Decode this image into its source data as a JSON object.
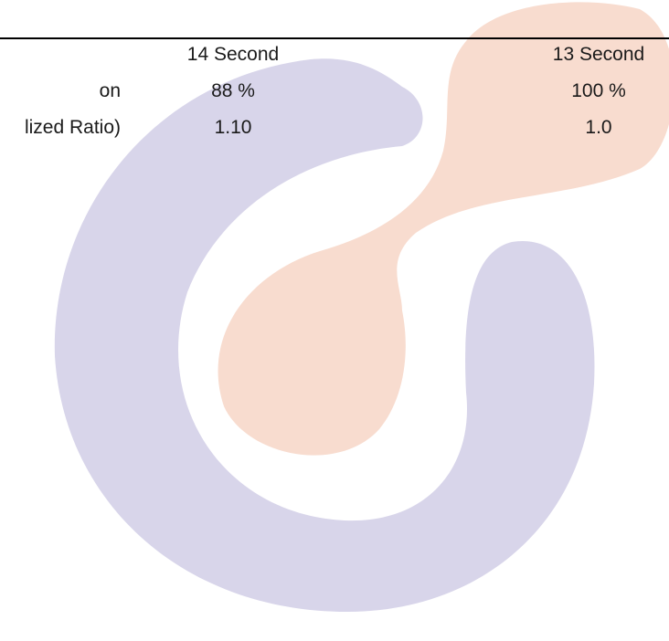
{
  "table": {
    "rows": [
      {
        "label": "",
        "col_a": "14 Second",
        "col_b": "13 Second"
      },
      {
        "label": "on",
        "col_a": "88 %",
        "col_b": "100 %"
      },
      {
        "label": "lized Ratio)",
        "col_a": "1.10",
        "col_b": "1.0"
      }
    ]
  },
  "watermark": {
    "icon": "logo-watermark-icon",
    "colors": {
      "ring": "#d8d5ea",
      "drop": "#f8dccf"
    }
  }
}
